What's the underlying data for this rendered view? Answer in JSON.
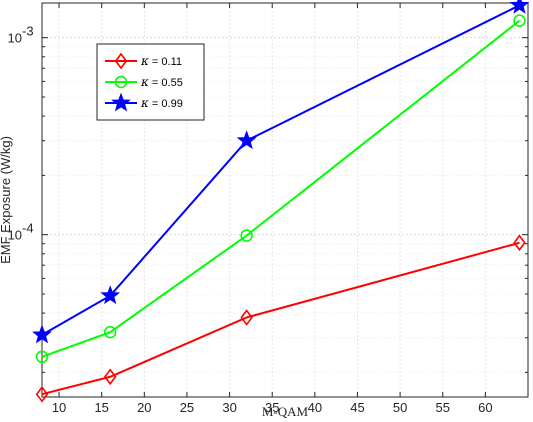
{
  "chart_data": {
    "type": "line",
    "xlabel": "M-QAM",
    "ylabel": "EMF Exposure (W/kg)",
    "x": [
      8,
      16,
      32,
      64
    ],
    "xlim": [
      8,
      65
    ],
    "xticks": [
      "10",
      "15",
      "20",
      "25",
      "30",
      "35",
      "40",
      "45",
      "50",
      "55",
      "60"
    ],
    "yscale": "log",
    "ylim": [
      1.5e-05,
      0.0015
    ],
    "yticks": [
      {
        "base": "10",
        "exp": "-4",
        "value": 0.0001
      },
      {
        "base": "10",
        "exp": "-3",
        "value": 0.001
      }
    ],
    "grid": true,
    "legend_position": "top-left",
    "series": [
      {
        "name": "κ = 0.11",
        "symbol": "κ",
        "eq": " = 0.11",
        "color": "#ff0000",
        "marker": "diamond",
        "values": [
          1.55e-05,
          1.9e-05,
          3.8e-05,
          9.1e-05
        ]
      },
      {
        "name": "κ = 0.55",
        "symbol": "κ",
        "eq": " = 0.55",
        "color": "#00ff00",
        "marker": "circle",
        "values": [
          2.4e-05,
          3.2e-05,
          9.9e-05,
          0.00122
        ]
      },
      {
        "name": "κ = 0.99",
        "symbol": "κ",
        "eq": " = 0.99",
        "color": "#0000ff",
        "marker": "star",
        "values": [
          3.1e-05,
          4.9e-05,
          0.0003,
          0.00146
        ]
      }
    ]
  }
}
